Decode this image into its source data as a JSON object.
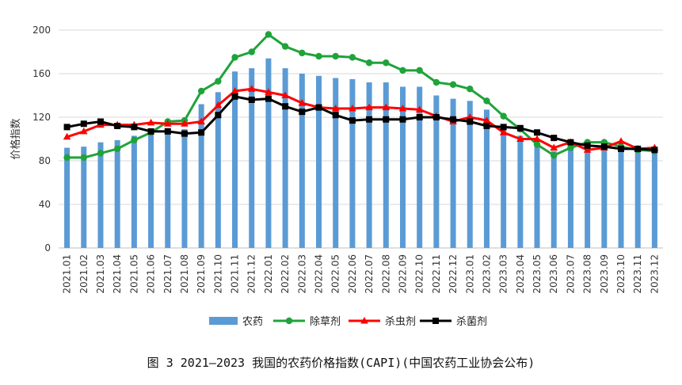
{
  "chart_data": {
    "type": "bar+line",
    "caption": "图 3  2021—2023 我国的农药价格指数(CAPI)(中国农药工业协会公布)",
    "ylabel": "价格指数",
    "ylim": [
      0,
      200
    ],
    "yticks": [
      "0",
      "40",
      "80",
      "120",
      "160",
      "200"
    ],
    "grid": true,
    "legend_position": "bottom",
    "categories": [
      "2021.01",
      "2021.02",
      "2021.03",
      "2021.04",
      "2021.05",
      "2021.06",
      "2021.07",
      "2021.08",
      "2021.09",
      "2021.10",
      "2021.11",
      "2021.12",
      "2022.01",
      "2022.02",
      "2022.03",
      "2022.04",
      "2022.05",
      "2022.06",
      "2022.07",
      "2022.08",
      "2022.09",
      "2022.10",
      "2022.11",
      "2022.12",
      "2023.01",
      "2023.02",
      "2023.03",
      "2023.04",
      "2023.05",
      "2023.06",
      "2023.07",
      "2023.08",
      "2023.09",
      "2023.10",
      "2023.11",
      "2023.12"
    ],
    "series": [
      {
        "name": "农药",
        "type": "bar",
        "color": "#5b9bd5",
        "values": [
          92,
          93,
          97,
          99,
          103,
          108,
          110,
          109,
          132,
          143,
          162,
          165,
          174,
          165,
          160,
          158,
          156,
          155,
          152,
          152,
          148,
          148,
          140,
          137,
          135,
          127,
          113,
          103,
          97,
          89,
          91,
          94,
          93,
          93,
          92,
          91
        ]
      },
      {
        "name": "除草剂",
        "type": "line",
        "color": "#1fa33a",
        "marker": "circle",
        "values": [
          83,
          83,
          87,
          91,
          99,
          106,
          116,
          117,
          144,
          153,
          175,
          180,
          196,
          185,
          179,
          176,
          176,
          175,
          170,
          170,
          163,
          163,
          152,
          150,
          146,
          135,
          121,
          109,
          95,
          85,
          92,
          97,
          97,
          93,
          90,
          89
        ]
      },
      {
        "name": "杀虫剂",
        "type": "line",
        "color": "#ff0000",
        "marker": "triangle",
        "values": [
          102,
          107,
          113,
          113,
          113,
          115,
          114,
          114,
          116,
          131,
          144,
          146,
          143,
          140,
          133,
          129,
          128,
          128,
          129,
          129,
          128,
          127,
          121,
          116,
          120,
          117,
          106,
          100,
          100,
          92,
          97,
          90,
          92,
          98,
          91,
          92
        ]
      },
      {
        "name": "杀菌剂",
        "type": "line",
        "color": "#000000",
        "marker": "square",
        "values": [
          111,
          114,
          116,
          112,
          111,
          107,
          107,
          105,
          106,
          122,
          139,
          136,
          137,
          130,
          125,
          129,
          122,
          117,
          118,
          118,
          118,
          120,
          120,
          118,
          116,
          112,
          111,
          110,
          106,
          101,
          97,
          94,
          93,
          91,
          91,
          90
        ]
      }
    ]
  }
}
